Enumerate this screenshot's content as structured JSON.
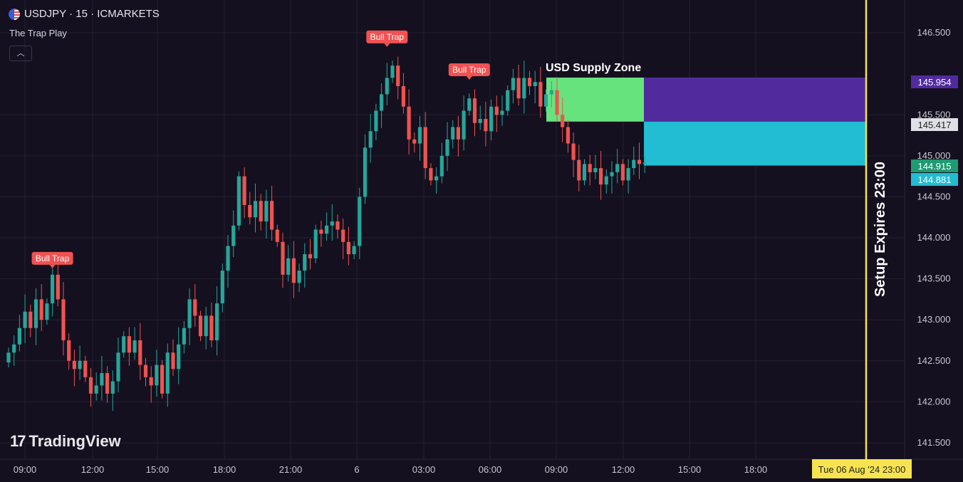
{
  "header": {
    "symbol_line": "USDJPY · 15 · ICMARKETS",
    "indicator": "The Trap Play",
    "collapse_icon": "chevron-up"
  },
  "branding": {
    "logo_text": "TradingView",
    "logo_mark": "17"
  },
  "colors": {
    "background": "#14101f",
    "grid": "#23202f",
    "up": "#26a69a",
    "down": "#ef5350",
    "supply_zone": "#66e37d",
    "purple_box": "#512b9e",
    "cyan_box": "#22bcd3",
    "expiry_line": "#f7e34f",
    "label_bg": "#f05252"
  },
  "chart_data": {
    "type": "candlestick",
    "symbol": "USDJPY",
    "timeframe": "15",
    "exchange": "ICMARKETS",
    "ylim": [
      141.3,
      146.9
    ],
    "y_ticks": [
      "146.500",
      "145.500",
      "145.000",
      "144.500",
      "144.000",
      "143.500",
      "143.000",
      "142.500",
      "142.000",
      "141.500"
    ],
    "x_ticks": [
      "09:00",
      "12:00",
      "15:00",
      "18:00",
      "21:00",
      "6",
      "03:00",
      "06:00",
      "09:00",
      "12:00",
      "15:00",
      "18:00",
      "23:00"
    ],
    "price_labels": [
      {
        "value": "145.954",
        "color": "#512b9e"
      },
      {
        "value": "145.417",
        "color": "#dfe0e6",
        "text_color": "#222"
      },
      {
        "value": "144.915",
        "color": "#1f9b74"
      },
      {
        "value": "144.881",
        "color": "#22bcd3"
      }
    ],
    "time_label": "Tue 06 Aug '24   23:00",
    "close_series": [
      142.6,
      142.7,
      142.9,
      143.1,
      142.9,
      143.25,
      143.0,
      143.2,
      143.55,
      143.25,
      142.75,
      142.5,
      142.4,
      142.5,
      142.3,
      142.1,
      142.2,
      142.35,
      142.1,
      142.25,
      142.6,
      142.8,
      142.6,
      142.75,
      142.45,
      142.3,
      142.2,
      142.45,
      142.1,
      142.6,
      142.4,
      142.7,
      142.9,
      143.25,
      143.05,
      142.8,
      143.05,
      142.75,
      143.2,
      143.6,
      143.9,
      144.15,
      144.75,
      144.4,
      144.25,
      144.45,
      144.2,
      144.45,
      144.1,
      143.95,
      143.55,
      143.75,
      143.45,
      143.6,
      143.8,
      143.75,
      144.1,
      144.05,
      144.15,
      144.2,
      144.1,
      143.95,
      143.8,
      143.9,
      144.5,
      145.1,
      145.3,
      145.55,
      145.75,
      145.95,
      146.1,
      145.85,
      145.6,
      145.2,
      145.15,
      145.35,
      144.85,
      144.7,
      144.75,
      145.0,
      145.2,
      145.35,
      145.2,
      145.55,
      145.7,
      145.4,
      145.45,
      145.3,
      145.6,
      145.5,
      145.55,
      145.8,
      145.95,
      145.7,
      145.95,
      145.85,
      145.9,
      145.6,
      145.75,
      145.8,
      145.5,
      145.35,
      145.15,
      144.95,
      144.7,
      144.9,
      144.8,
      144.85,
      144.65,
      144.75,
      144.8,
      144.9,
      144.7,
      144.85,
      144.95,
      144.9,
      144.915
    ],
    "annotations": [
      {
        "text": "Bull Trap",
        "candle_index": 8,
        "price": 143.55
      },
      {
        "text": "Bull Trap",
        "candle_index": 69,
        "price": 146.25
      },
      {
        "text": "Bull Trap",
        "candle_index": 84,
        "price": 145.85
      }
    ],
    "zones": [
      {
        "name": "USD Supply Zone",
        "from_price": 145.954,
        "to_price": 145.417,
        "style": "green"
      },
      {
        "name": "",
        "from_price": 145.954,
        "to_price": 145.417,
        "style": "purple"
      },
      {
        "name": "",
        "from_price": 145.417,
        "to_price": 144.881,
        "style": "cyan"
      }
    ],
    "vertical_line": {
      "label": "Setup Expires 23:00",
      "time": "23:00"
    }
  }
}
